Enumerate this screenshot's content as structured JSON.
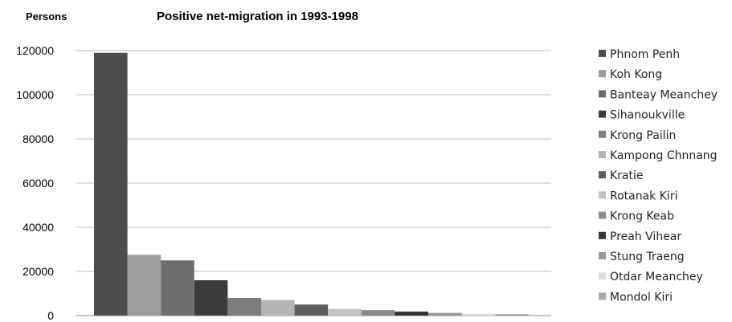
{
  "chart_data": {
    "type": "bar",
    "title": "Positive net-migration in 1993-1998",
    "ylabel": "Persons",
    "xlabel": "",
    "ylim": [
      0,
      120000
    ],
    "yticks": [
      0,
      20000,
      40000,
      60000,
      80000,
      100000,
      120000
    ],
    "grid": true,
    "legend_position": "right",
    "series": [
      {
        "name": "Phnom Penh",
        "value": 119000,
        "color": "#4d4d4d"
      },
      {
        "name": "Koh Kong",
        "value": 27500,
        "color": "#9c9c9c"
      },
      {
        "name": "Banteay Meanchey",
        "value": 25000,
        "color": "#6e6e6e"
      },
      {
        "name": "Sihanoukville",
        "value": 16000,
        "color": "#3b3b3b"
      },
      {
        "name": "Krong Pailin",
        "value": 8000,
        "color": "#7d7d7d"
      },
      {
        "name": "Kampong Chnnang",
        "value": 7000,
        "color": "#b4b4b4"
      },
      {
        "name": "Kratie",
        "value": 5000,
        "color": "#5e5e5e"
      },
      {
        "name": "Rotanak Kiri",
        "value": 3000,
        "color": "#c2c2c2"
      },
      {
        "name": "Krong Keab",
        "value": 2500,
        "color": "#8b8b8b"
      },
      {
        "name": "Preah Vihear",
        "value": 1800,
        "color": "#353535"
      },
      {
        "name": "Stung Traeng",
        "value": 1200,
        "color": "#999999"
      },
      {
        "name": "Otdar Meanchey",
        "value": 800,
        "color": "#dcdcdc"
      },
      {
        "name": "Mondol Kiri",
        "value": 700,
        "color": "#a9a9a9"
      }
    ]
  }
}
